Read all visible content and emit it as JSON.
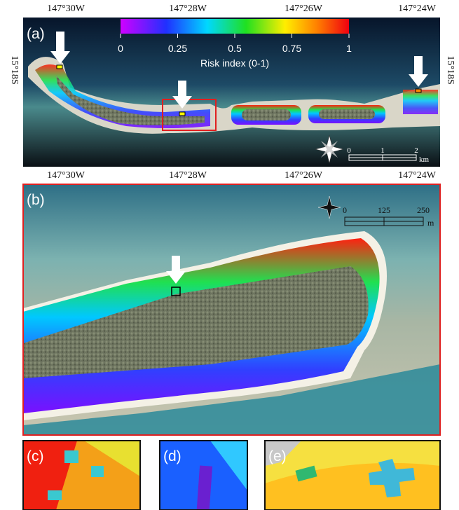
{
  "panel_a": {
    "label": "(a)",
    "top_longitudes": [
      "147°30W",
      "147°28W",
      "147°26W",
      "147°24W"
    ],
    "bottom_longitudes": [
      "147°30W",
      "147°28W",
      "147°26W",
      "147°24W"
    ],
    "left_latitude": "15°18S",
    "right_latitude": "15°18S",
    "colorbar": {
      "ticks": [
        "0",
        "0.25",
        "0.5",
        "0.75",
        "1"
      ],
      "title": "Risk index (0-1)"
    },
    "scale_bar": {
      "ticks": [
        "0",
        "1",
        "2"
      ],
      "unit": "km"
    }
  },
  "panel_b": {
    "label": "(b)",
    "scale_bar": {
      "ticks": [
        "0",
        "125",
        "250"
      ],
      "unit": "m"
    }
  },
  "panel_c": {
    "label": "(c)"
  },
  "panel_d": {
    "label": "(d)"
  },
  "panel_e": {
    "label": "(e)"
  }
}
